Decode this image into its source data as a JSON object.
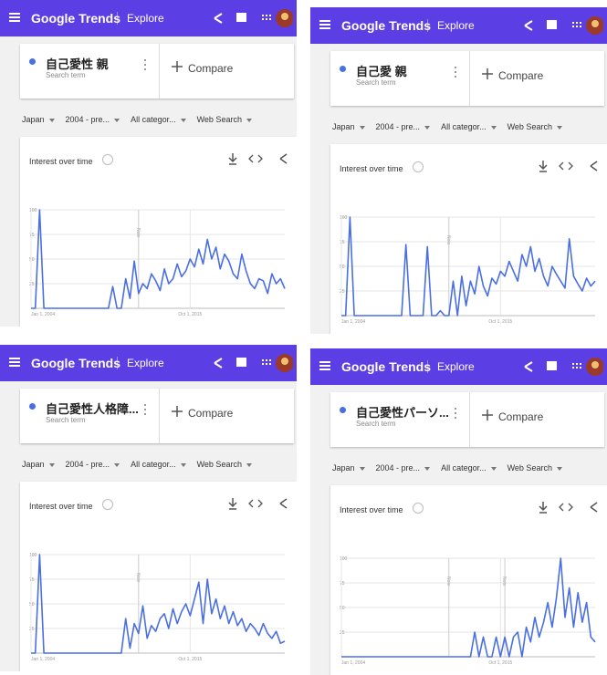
{
  "panels": [
    {
      "header": {
        "logo": "Google Trends",
        "explore": "Explore"
      },
      "search": {
        "term": "自己愛性 親",
        "subtitle": "Search term",
        "compare": "Compare"
      },
      "filters": [
        "Japan",
        "2004 - pre...",
        "All categor...",
        "Web Search"
      ],
      "chart_data": {
        "type": "line",
        "title": "Interest over time",
        "color": "#4a6fe3",
        "grid": true,
        "values": [
          0,
          0,
          100,
          0,
          0,
          0,
          0,
          0,
          0,
          0,
          0,
          0,
          0,
          0,
          0,
          0,
          0,
          0,
          0,
          22,
          0,
          0,
          30,
          10,
          48,
          15,
          25,
          20,
          35,
          28,
          18,
          40,
          25,
          30,
          45,
          32,
          38,
          50,
          42,
          60,
          45,
          70,
          50,
          62,
          40,
          55,
          48,
          35,
          30,
          55,
          38,
          25,
          20,
          30,
          28,
          15,
          35,
          25,
          30,
          20
        ],
        "xlim": [
          0,
          59
        ],
        "xticks": [
          {
            "value": 0,
            "label": "Jan 1, 2004"
          },
          {
            "value": 37,
            "label": "Oct 1, 2015"
          }
        ],
        "ylim": [
          0,
          100
        ],
        "yticks": [
          25,
          50,
          75,
          100
        ],
        "notes": [
          {
            "label": "Note",
            "x": 25
          }
        ]
      }
    },
    {
      "header": {
        "logo": "Google Trends",
        "explore": "Explore"
      },
      "search": {
        "term": "自己愛 親",
        "subtitle": "Search term",
        "compare": "Compare"
      },
      "filters": [
        "Japan",
        "2004 - pre...",
        "All categor...",
        "Web Search"
      ],
      "chart_data": {
        "type": "line",
        "title": "Interest over time",
        "color": "#4a6fe3",
        "grid": true,
        "values": [
          0,
          0,
          100,
          0,
          0,
          0,
          0,
          0,
          0,
          0,
          0,
          0,
          0,
          0,
          0,
          72,
          0,
          0,
          0,
          0,
          70,
          0,
          0,
          5,
          0,
          0,
          35,
          0,
          40,
          10,
          35,
          22,
          50,
          30,
          20,
          38,
          32,
          45,
          40,
          55,
          45,
          35,
          62,
          50,
          70,
          45,
          58,
          40,
          30,
          50,
          42,
          35,
          28,
          78,
          40,
          32,
          25,
          38,
          30,
          35
        ],
        "xlim": [
          0,
          59
        ],
        "xticks": [
          {
            "value": 0,
            "label": "Jan 1, 2004"
          },
          {
            "value": 37,
            "label": "Oct 1, 2015"
          }
        ],
        "ylim": [
          0,
          100
        ],
        "yticks": [
          25,
          50,
          75,
          100
        ],
        "notes": [
          {
            "label": "Note",
            "x": 25
          }
        ]
      }
    },
    {
      "header": {
        "logo": "Google Trends",
        "explore": "Explore"
      },
      "search": {
        "term": "自己愛性人格障...",
        "subtitle": "Search term",
        "compare": "Compare"
      },
      "filters": [
        "Japan",
        "2004 - pre...",
        "All categor...",
        "Web Search"
      ],
      "chart_data": {
        "type": "line",
        "title": "Interest over time",
        "color": "#4a6fe3",
        "grid": true,
        "values": [
          0,
          0,
          100,
          0,
          0,
          0,
          0,
          0,
          0,
          0,
          0,
          0,
          0,
          0,
          0,
          0,
          0,
          0,
          0,
          0,
          0,
          0,
          35,
          5,
          30,
          20,
          48,
          15,
          28,
          22,
          35,
          40,
          25,
          45,
          30,
          42,
          50,
          38,
          55,
          72,
          30,
          75,
          40,
          55,
          35,
          48,
          30,
          42,
          28,
          35,
          22,
          30,
          25,
          18,
          30,
          20,
          15,
          22,
          10,
          12
        ],
        "xlim": [
          0,
          59
        ],
        "xticks": [
          {
            "value": 0,
            "label": "Jan 1, 2004"
          },
          {
            "value": 37,
            "label": "Oct 1, 2015"
          }
        ],
        "ylim": [
          0,
          100
        ],
        "yticks": [
          25,
          50,
          75,
          100
        ],
        "notes": [
          {
            "label": "Note",
            "x": 25
          }
        ]
      }
    },
    {
      "header": {
        "logo": "Google Trends",
        "explore": "Explore"
      },
      "search": {
        "term": "自己愛性パーソ...",
        "subtitle": "Search term",
        "compare": "Compare"
      },
      "filters": [
        "Japan",
        "2004 - pre...",
        "All categor...",
        "Web Search"
      ],
      "chart_data": {
        "type": "line",
        "title": "Interest over time",
        "color": "#4a6fe3",
        "grid": true,
        "values": [
          0,
          0,
          0,
          0,
          0,
          0,
          0,
          0,
          0,
          0,
          0,
          0,
          0,
          0,
          0,
          0,
          0,
          0,
          0,
          0,
          0,
          0,
          0,
          0,
          0,
          0,
          0,
          0,
          0,
          0,
          0,
          25,
          0,
          20,
          0,
          0,
          20,
          0,
          20,
          0,
          20,
          25,
          0,
          30,
          15,
          40,
          20,
          35,
          55,
          30,
          60,
          100,
          40,
          70,
          30,
          65,
          35,
          55,
          20,
          15
        ],
        "xlim": [
          0,
          59
        ],
        "xticks": [
          {
            "value": 0,
            "label": "Jan 1, 2004"
          },
          {
            "value": 37,
            "label": "Oct 1, 2015"
          }
        ],
        "ylim": [
          0,
          100
        ],
        "yticks": [
          25,
          50,
          75,
          100
        ],
        "notes": [
          {
            "label": "Note",
            "x": 25
          },
          {
            "label": "Note",
            "x": 38
          }
        ]
      }
    }
  ]
}
